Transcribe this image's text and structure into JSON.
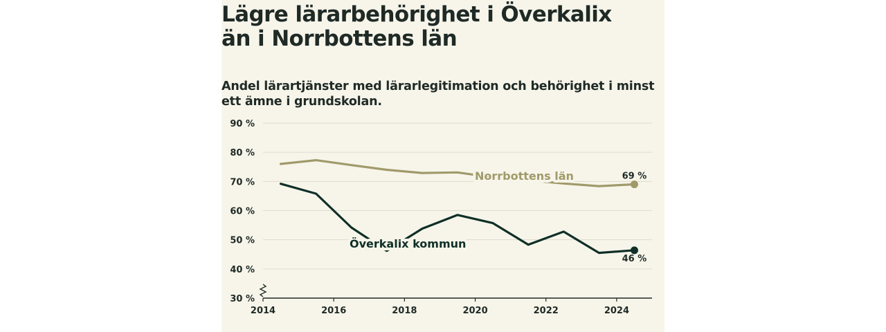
{
  "title": "Lägre lärarbehörighet i Överkalix än i Norrbottens län",
  "subtitle": "Andel lärartjänster med lärarlegitimation och behörighet i minst ett ämne i grundskolan.",
  "chart_data": {
    "type": "line",
    "x": [
      2014.5,
      2015.5,
      2016.5,
      2017.5,
      2018.5,
      2019.5,
      2020.5,
      2021.5,
      2022.5,
      2023.5,
      2024.5
    ],
    "xticks": [
      2014,
      2016,
      2018,
      2020,
      2022,
      2024
    ],
    "yticks": [
      30,
      40,
      50,
      60,
      70,
      80,
      90
    ],
    "ytick_labels": [
      "30 %",
      "40 %",
      "50 %",
      "60 %",
      "70 %",
      "80 %",
      "90 %"
    ],
    "ylim": [
      30,
      90
    ],
    "xlim": [
      2014,
      2025
    ],
    "grid": true,
    "axis_break": true,
    "series": [
      {
        "name": "Norrbottens län",
        "color": "#a09a6a",
        "values": [
          76,
          77.3,
          75.6,
          74,
          72.9,
          73.1,
          71.4,
          70.4,
          69.3,
          68.4,
          69
        ],
        "end_label": "69 %"
      },
      {
        "name": "Överkalix kommun",
        "color": "#0f2f27",
        "values": [
          69.2,
          65.8,
          54.2,
          46.2,
          53.8,
          58.5,
          55.7,
          48.3,
          52.8,
          45.5,
          46.4
        ],
        "end_label": "46 %"
      }
    ]
  }
}
